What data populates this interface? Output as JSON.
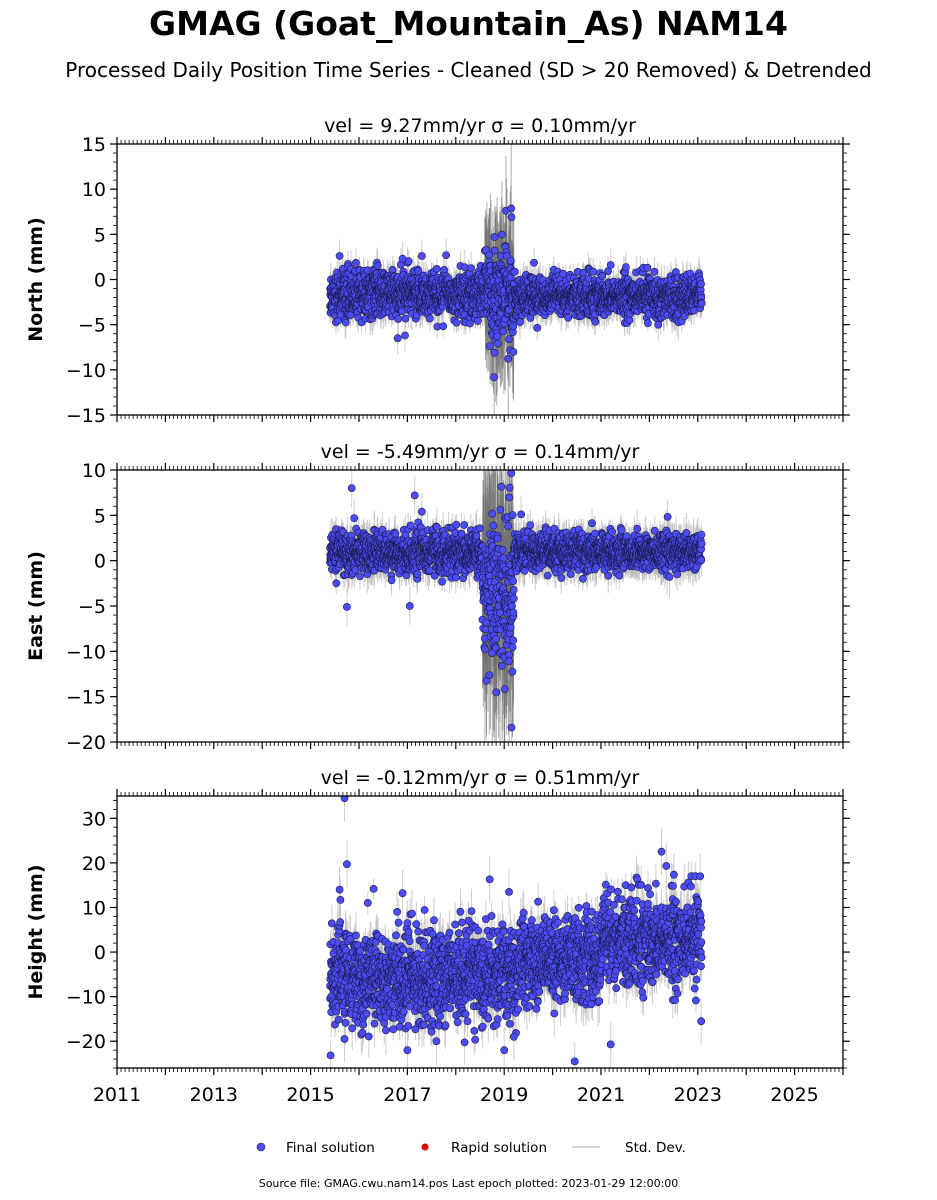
{
  "header": {
    "title": "GMAG (Goat_Mountain_As) NAM14",
    "subtitle": "Processed Daily Position Time Series - Cleaned (SD > 20 Removed) & Detrended"
  },
  "footer": {
    "source": "Source file: GMAG.cwu.nam14.pos  Last epoch plotted: 2023-01-29 12:00:00"
  },
  "chart_data": [
    {
      "type": "scatter",
      "title": "vel = 9.27mm/yr   σ = 0.10mm/yr",
      "ylabel": "North (mm)",
      "xlim": [
        2011.0,
        2026.0
      ],
      "ylim": [
        -15,
        15
      ],
      "yticks": [
        15,
        10,
        5,
        0,
        -5,
        -10,
        -15
      ],
      "ytick_labels": [
        "15",
        "10",
        "5",
        "0",
        "−5",
        "−10",
        "−15"
      ],
      "series": [
        {
          "name": "Final solution",
          "segments": [
            {
              "x0": 2015.4,
              "x1": 2018.6,
              "mean": -1.6,
              "sd": 1.3
            },
            {
              "x0": 2018.6,
              "x1": 2019.2,
              "mean": -1.5,
              "sd": 2.8
            },
            {
              "x0": 2019.2,
              "x1": 2023.08,
              "mean": -1.9,
              "sd": 1.1
            }
          ],
          "outliers": [
            {
              "x": 2015.6,
              "y": 2.6
            },
            {
              "x": 2016.9,
              "y": 2.3
            },
            {
              "x": 2017.3,
              "y": 2.6
            },
            {
              "x": 2017.8,
              "y": 2.7
            },
            {
              "x": 2018.8,
              "y": 4.7
            },
            {
              "x": 2019.15,
              "y": 6.9
            },
            {
              "x": 2018.8,
              "y": -8.1
            },
            {
              "x": 2016.8,
              "y": -6.5
            },
            {
              "x": 2021.2,
              "y": 1.6
            },
            {
              "x": 2016.95,
              "y": -6.2
            },
            {
              "x": 2019.1,
              "y": -6.6
            }
          ]
        },
        {
          "name": "Rapid solution",
          "segments": [],
          "outliers": []
        },
        {
          "name": "Std. Dev.",
          "sigma_base": 1.4,
          "sigma_noisy": 6.0
        }
      ]
    },
    {
      "type": "scatter",
      "title": "vel = -5.49mm/yr   σ = 0.14mm/yr",
      "ylabel": "East (mm)",
      "xlim": [
        2011.0,
        2026.0
      ],
      "ylim": [
        -20,
        10
      ],
      "yticks": [
        10,
        5,
        0,
        -5,
        -10,
        -15,
        -20
      ],
      "ytick_labels": [
        "10",
        "5",
        "0",
        "−5",
        "−10",
        "−15",
        "−20"
      ],
      "series": [
        {
          "name": "Final solution",
          "segments": [
            {
              "x0": 2015.4,
              "x1": 2018.55,
              "mean": 0.9,
              "sd": 1.1
            },
            {
              "x0": 2018.55,
              "x1": 2019.2,
              "mean": -3.0,
              "sd": 4.5
            },
            {
              "x0": 2019.2,
              "x1": 2023.08,
              "mean": 1.0,
              "sd": 1.0
            }
          ],
          "outliers": [
            {
              "x": 2015.85,
              "y": 8.0
            },
            {
              "x": 2017.15,
              "y": 7.2
            },
            {
              "x": 2015.9,
              "y": 4.7
            },
            {
              "x": 2017.3,
              "y": 5.4
            },
            {
              "x": 2019.35,
              "y": 5.1
            },
            {
              "x": 2015.75,
              "y": -5.1
            },
            {
              "x": 2017.05,
              "y": -5.0
            },
            {
              "x": 2018.75,
              "y": -10.2
            },
            {
              "x": 2018.95,
              "y": -11.6
            },
            {
              "x": 2019.1,
              "y": -11.1
            },
            {
              "x": 2019.15,
              "y": -18.4
            }
          ]
        },
        {
          "name": "Rapid solution",
          "segments": [],
          "outliers": []
        },
        {
          "name": "Std. Dev.",
          "sigma_base": 1.6,
          "sigma_noisy": 9.0
        }
      ]
    },
    {
      "type": "scatter",
      "title": "vel = -0.12mm/yr   σ = 0.51mm/yr",
      "ylabel": "Height (mm)",
      "xlim": [
        2011.0,
        2026.0
      ],
      "ylim": [
        -26,
        35
      ],
      "yticks": [
        30,
        20,
        10,
        0,
        -10,
        -20
      ],
      "ytick_labels": [
        "30",
        "20",
        "10",
        "0",
        "−10",
        "−20"
      ],
      "xticks": [
        2011,
        2013,
        2015,
        2017,
        2019,
        2021,
        2023,
        2025
      ],
      "xtick_labels": [
        "2011",
        "2013",
        "2015",
        "2017",
        "2019",
        "2021",
        "2023",
        "2025"
      ],
      "series": [
        {
          "name": "Final solution",
          "segments": [
            {
              "x0": 2015.4,
              "x1": 2019.3,
              "mean": -5.5,
              "sd": 5.2
            },
            {
              "x0": 2019.3,
              "x1": 2021.0,
              "mean": -1.5,
              "sd": 4.8
            },
            {
              "x0": 2021.0,
              "x1": 2023.08,
              "mean": 2.5,
              "sd": 5.0
            }
          ],
          "outliers": [
            {
              "x": 2015.7,
              "y": 34.5
            },
            {
              "x": 2015.75,
              "y": 19.7
            },
            {
              "x": 2015.6,
              "y": 14.0
            },
            {
              "x": 2016.9,
              "y": 13.2
            },
            {
              "x": 2018.7,
              "y": 16.3
            },
            {
              "x": 2019.1,
              "y": 13.5
            },
            {
              "x": 2022.25,
              "y": 22.5
            },
            {
              "x": 2022.35,
              "y": 19.3
            },
            {
              "x": 2023.05,
              "y": 17.0
            },
            {
              "x": 2015.7,
              "y": -19.5
            },
            {
              "x": 2017.0,
              "y": -22.0
            },
            {
              "x": 2017.6,
              "y": -20.0
            },
            {
              "x": 2019.0,
              "y": -22.0
            },
            {
              "x": 2019.2,
              "y": -19.0
            },
            {
              "x": 2021.2,
              "y": -20.7
            },
            {
              "x": 2023.07,
              "y": -15.5
            }
          ]
        },
        {
          "name": "Rapid solution",
          "segments": [],
          "outliers": []
        },
        {
          "name": "Std. Dev.",
          "sigma_base": 4.0,
          "sigma_noisy": 9.0
        }
      ]
    }
  ],
  "legend": {
    "items": [
      {
        "label": "Final solution",
        "color": "#4b4cf5"
      },
      {
        "label": "Rapid solution",
        "color": "#e00000"
      },
      {
        "label": "Std. Dev.",
        "color": "#c8c8c8"
      }
    ],
    "placement": "bottom-center"
  },
  "colors": {
    "final": "#4b4cf5",
    "final_edge": "#1a1a4a",
    "rapid": "#e00000",
    "stddev": "#b8b8b8",
    "stddev_dark": "#707070"
  }
}
